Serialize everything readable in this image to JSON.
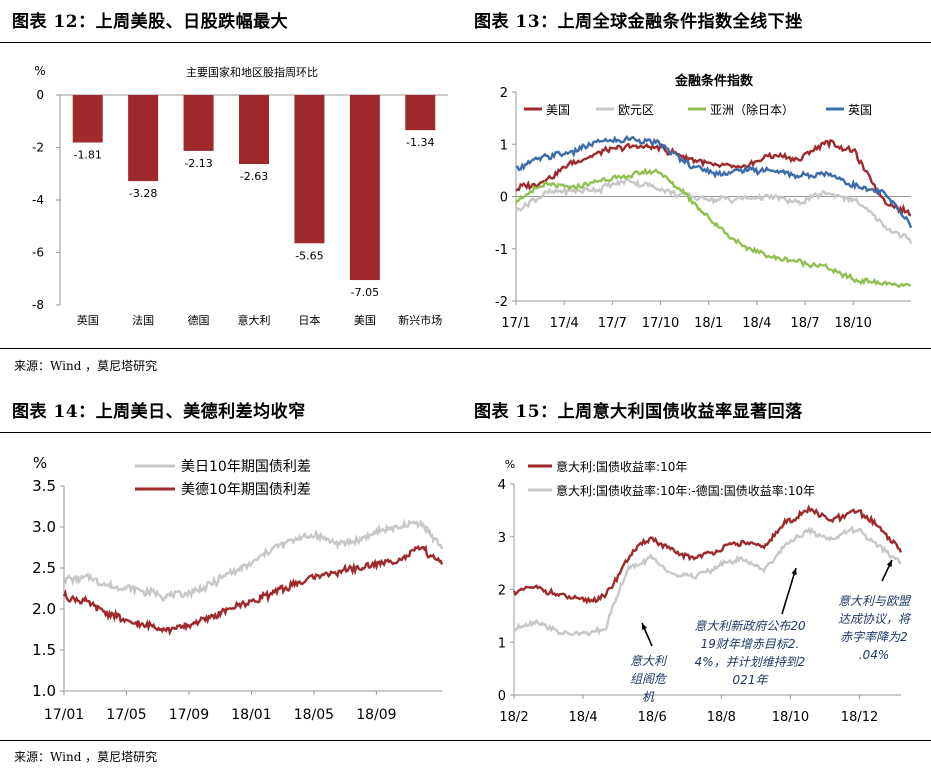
{
  "panels": {
    "p12": {
      "title": "图表 12：上周美股、日股跌幅最大"
    },
    "p13": {
      "title": "图表 13：上周全球金融条件指数全线下挫"
    },
    "p14": {
      "title": "图表 14：上周美日、美德利差均收窄"
    },
    "p15": {
      "title": "图表 15：上周意大利国债收益率显著回落"
    }
  },
  "sources": {
    "top": "来源：Wind ，莫尼塔研究",
    "bottom": "来源：Wind ，莫尼塔研究"
  },
  "colors": {
    "dark_red": "#9e2a2b",
    "gray": "#c8c8c8",
    "green": "#92c050",
    "blue": "#3d6ca8"
  },
  "chart_data": [
    {
      "id": "p12",
      "type": "bar",
      "title": "主要国家和地区股指周环比",
      "unit": "%",
      "categories": [
        "英国",
        "法国",
        "德国",
        "意大利",
        "日本",
        "美国",
        "新兴市场"
      ],
      "values": [
        -1.81,
        -3.28,
        -2.13,
        -2.63,
        -5.65,
        -7.05,
        -1.34
      ],
      "labels": [
        "-1.81",
        "-3.28",
        "-2.13",
        "-2.63",
        "-5.65",
        "-7.05",
        "-1.34"
      ],
      "ylim": [
        -8,
        0
      ],
      "yticks": [
        "0",
        "-2",
        "-4",
        "-6",
        "-8"
      ]
    },
    {
      "id": "p13",
      "type": "line",
      "title": "金融条件指数",
      "ylim": [
        -2,
        2
      ],
      "yticks": [
        "2",
        "1",
        "0",
        "-1",
        "-2"
      ],
      "xticks": [
        "17/1",
        "17/4",
        "17/7",
        "17/10",
        "18/1",
        "18/4",
        "18/7",
        "18/10"
      ],
      "legend": [
        "美国",
        "欧元区",
        "亚洲（除日本）",
        "英国"
      ],
      "series": [
        {
          "name": "美国",
          "points": [
            [
              0,
              0.15
            ],
            [
              1,
              0.3
            ],
            [
              2,
              0.65
            ],
            [
              3,
              0.85
            ],
            [
              4,
              0.95
            ],
            [
              5,
              0.95
            ],
            [
              6,
              0.75
            ],
            [
              7,
              0.6
            ],
            [
              8,
              0.55
            ],
            [
              9,
              0.8
            ],
            [
              10,
              0.7
            ],
            [
              11,
              1.05
            ],
            [
              12,
              0.85
            ],
            [
              13,
              -0.05
            ],
            [
              14,
              -0.35
            ]
          ]
        },
        {
          "name": "欧元区",
          "points": [
            [
              0,
              -0.25
            ],
            [
              1,
              0.05
            ],
            [
              2,
              0.1
            ],
            [
              3,
              0.15
            ],
            [
              4,
              0.3
            ],
            [
              5,
              0.15
            ],
            [
              6,
              0.0
            ],
            [
              7,
              -0.05
            ],
            [
              8,
              -0.05
            ],
            [
              9,
              0.0
            ],
            [
              10,
              -0.1
            ],
            [
              11,
              0.05
            ],
            [
              12,
              -0.05
            ],
            [
              13,
              -0.55
            ],
            [
              14,
              -0.85
            ]
          ]
        },
        {
          "name": "亚洲（除日本）",
          "points": [
            [
              0,
              -0.1
            ],
            [
              1,
              0.25
            ],
            [
              2,
              0.15
            ],
            [
              3,
              0.3
            ],
            [
              4,
              0.4
            ],
            [
              5,
              0.5
            ],
            [
              6,
              0.05
            ],
            [
              7,
              -0.5
            ],
            [
              8,
              -0.95
            ],
            [
              9,
              -1.15
            ],
            [
              10,
              -1.25
            ],
            [
              11,
              -1.35
            ],
            [
              12,
              -1.6
            ],
            [
              13,
              -1.65
            ],
            [
              14,
              -1.72
            ]
          ]
        },
        {
          "name": "英国",
          "points": [
            [
              0,
              0.55
            ],
            [
              1,
              0.75
            ],
            [
              2,
              0.85
            ],
            [
              3,
              1.05
            ],
            [
              4,
              1.1
            ],
            [
              5,
              1.05
            ],
            [
              6,
              0.65
            ],
            [
              7,
              0.45
            ],
            [
              8,
              0.5
            ],
            [
              9,
              0.5
            ],
            [
              10,
              0.4
            ],
            [
              11,
              0.45
            ],
            [
              12,
              0.2
            ],
            [
              13,
              0.1
            ],
            [
              14,
              -0.55
            ]
          ]
        }
      ]
    },
    {
      "id": "p14",
      "type": "line",
      "unit": "%",
      "ylim": [
        1.0,
        3.5
      ],
      "yticks": [
        "3.5",
        "3.0",
        "2.5",
        "2.0",
        "1.5",
        "1.0"
      ],
      "xticks": [
        "17/01",
        "17/05",
        "17/09",
        "18/01",
        "18/05",
        "18/09"
      ],
      "legend": [
        "美日10年期国债利差",
        "美德10年期国债利差"
      ],
      "series": [
        {
          "name": "美日10年期国债利差",
          "points": [
            [
              0,
              2.35
            ],
            [
              1,
              2.4
            ],
            [
              2,
              2.3
            ],
            [
              3,
              2.25
            ],
            [
              4,
              2.2
            ],
            [
              5,
              2.15
            ],
            [
              6,
              2.2
            ],
            [
              7,
              2.3
            ],
            [
              8,
              2.45
            ],
            [
              9,
              2.55
            ],
            [
              10,
              2.75
            ],
            [
              11,
              2.85
            ],
            [
              12,
              2.9
            ],
            [
              13,
              2.8
            ],
            [
              14,
              2.85
            ],
            [
              15,
              2.95
            ],
            [
              16,
              3.0
            ],
            [
              17,
              3.05
            ],
            [
              18,
              2.75
            ]
          ]
        },
        {
          "name": "美德10年期国债利差",
          "points": [
            [
              0,
              2.15
            ],
            [
              1,
              2.1
            ],
            [
              2,
              1.95
            ],
            [
              3,
              1.85
            ],
            [
              4,
              1.8
            ],
            [
              5,
              1.75
            ],
            [
              6,
              1.8
            ],
            [
              7,
              1.9
            ],
            [
              8,
              2.0
            ],
            [
              9,
              2.1
            ],
            [
              10,
              2.2
            ],
            [
              11,
              2.3
            ],
            [
              12,
              2.4
            ],
            [
              13,
              2.45
            ],
            [
              14,
              2.5
            ],
            [
              15,
              2.55
            ],
            [
              16,
              2.6
            ],
            [
              17,
              2.75
            ],
            [
              18,
              2.55
            ]
          ]
        }
      ]
    },
    {
      "id": "p15",
      "type": "line",
      "unit": "%",
      "ylim": [
        0,
        4
      ],
      "yticks": [
        "4",
        "3",
        "2",
        "1",
        "0"
      ],
      "xticks": [
        "18/2",
        "18/4",
        "18/6",
        "18/8",
        "18/10",
        "18/12"
      ],
      "legend": [
        "意大利:国债收益率:10年",
        "意大利:国债收益率:10年:-德国:国债收益率:10年"
      ],
      "series": [
        {
          "name": "意大利:国债收益率:10年",
          "points": [
            [
              0,
              1.95
            ],
            [
              1,
              2.05
            ],
            [
              2,
              1.9
            ],
            [
              3,
              1.8
            ],
            [
              4,
              1.85
            ],
            [
              5,
              2.6
            ],
            [
              6,
              3.0
            ],
            [
              7,
              2.7
            ],
            [
              8,
              2.6
            ],
            [
              9,
              2.75
            ],
            [
              10,
              2.9
            ],
            [
              11,
              2.8
            ],
            [
              12,
              3.3
            ],
            [
              13,
              3.5
            ],
            [
              14,
              3.3
            ],
            [
              15,
              3.5
            ],
            [
              16,
              3.2
            ],
            [
              17,
              2.75
            ]
          ]
        },
        {
          "name": "意大利:国债收益率:10年:-德国:国债收益率:10年",
          "points": [
            [
              0,
              1.25
            ],
            [
              1,
              1.4
            ],
            [
              2,
              1.2
            ],
            [
              3,
              1.15
            ],
            [
              4,
              1.25
            ],
            [
              5,
              2.4
            ],
            [
              6,
              2.6
            ],
            [
              7,
              2.3
            ],
            [
              8,
              2.25
            ],
            [
              9,
              2.45
            ],
            [
              10,
              2.6
            ],
            [
              11,
              2.35
            ],
            [
              12,
              2.9
            ],
            [
              13,
              3.1
            ],
            [
              14,
              2.95
            ],
            [
              15,
              3.15
            ],
            [
              16,
              2.85
            ],
            [
              17,
              2.5
            ]
          ]
        }
      ],
      "annotations": [
        "意大利组阁危机",
        "意大利新政府公布2019财年增赤目标2.4%，并计划维持到2021年",
        "意大利与欧盟达成协议，将赤字率降为2.04%"
      ]
    }
  ]
}
